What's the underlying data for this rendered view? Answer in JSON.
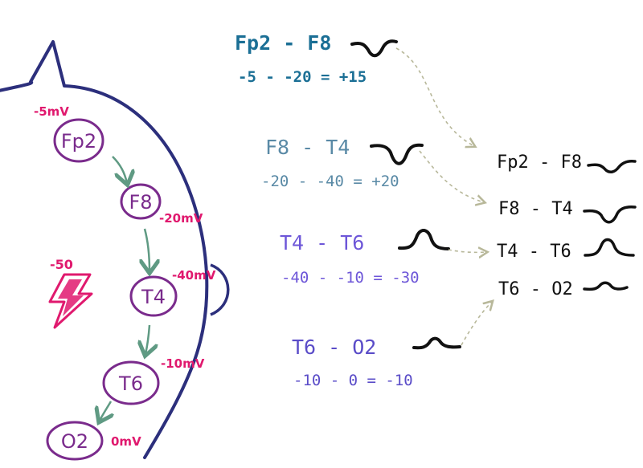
{
  "diagram": {
    "electrodes": [
      {
        "label": "Fp2",
        "voltage": "-5mV"
      },
      {
        "label": "F8",
        "voltage": "-20mV"
      },
      {
        "label": "T4",
        "voltage": "-40mV"
      },
      {
        "label": "T6",
        "voltage": "-10mV"
      },
      {
        "label": "O2",
        "voltage": "0mV"
      }
    ],
    "source": {
      "value": "-50"
    },
    "derivations": [
      {
        "title": "Fp2 - F8",
        "calc": "-5 - -20 = +15"
      },
      {
        "title": "F8 - T4",
        "calc": "-20 - -40 = +20"
      },
      {
        "title": "T4 - T6",
        "calc": "-40 - -10 = -30"
      },
      {
        "title": "T6 - O2",
        "calc": "-10 - 0 = -10"
      }
    ],
    "montage": [
      {
        "label": "Fp2 - F8"
      },
      {
        "label": "F8 - T4"
      },
      {
        "label": "T4 - T6"
      },
      {
        "label": "T6 - O2"
      }
    ],
    "colors": {
      "head_outline": "#2c2f7c",
      "electrode": "#7a2b8c",
      "voltage": "#e0196e",
      "arrow": "#5f9a83",
      "dotted_arrow": "#c9c9b0"
    }
  }
}
